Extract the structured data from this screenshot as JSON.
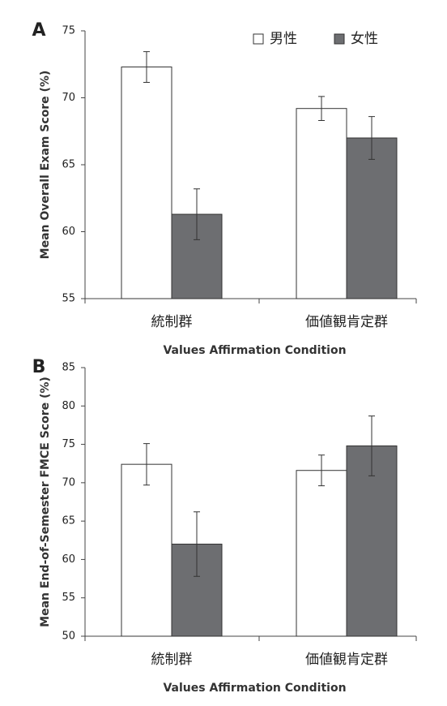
{
  "chart_data": [
    {
      "type": "bar",
      "panel": "A",
      "title": null,
      "x_label": "Values Affirmation Condition",
      "y_label": "Mean Overall Exam Score (%)",
      "categories": [
        "統制群",
        "価値観肯定群"
      ],
      "series": [
        {
          "name": "男性",
          "color": "#ffffff",
          "values": [
            72.3,
            69.2
          ],
          "errors": [
            1.15,
            0.9
          ]
        },
        {
          "name": "女性",
          "color": "#6d6e71",
          "values": [
            61.3,
            67.0
          ],
          "errors": [
            1.9,
            1.6
          ]
        }
      ],
      "ylim": [
        55,
        75
      ],
      "yticks": [
        55,
        60,
        65,
        70,
        75
      ],
      "legend": "upper right"
    },
    {
      "type": "bar",
      "panel": "B",
      "title": null,
      "x_label": "Values Affirmation Condition",
      "y_label": "Mean End-of-Semester FMCE Score (%)",
      "categories": [
        "統制群",
        "価値観肯定群"
      ],
      "series": [
        {
          "color": "#ffffff",
          "values": [
            72.4,
            71.6
          ],
          "errors": [
            2.7,
            2.0
          ]
        },
        {
          "color": "#6d6e71",
          "values": [
            62.0,
            74.8
          ],
          "errors": [
            4.2,
            3.9
          ]
        }
      ],
      "ylim": [
        50,
        85
      ],
      "yticks": [
        50,
        55,
        60,
        65,
        70,
        75,
        80,
        85
      ]
    }
  ]
}
